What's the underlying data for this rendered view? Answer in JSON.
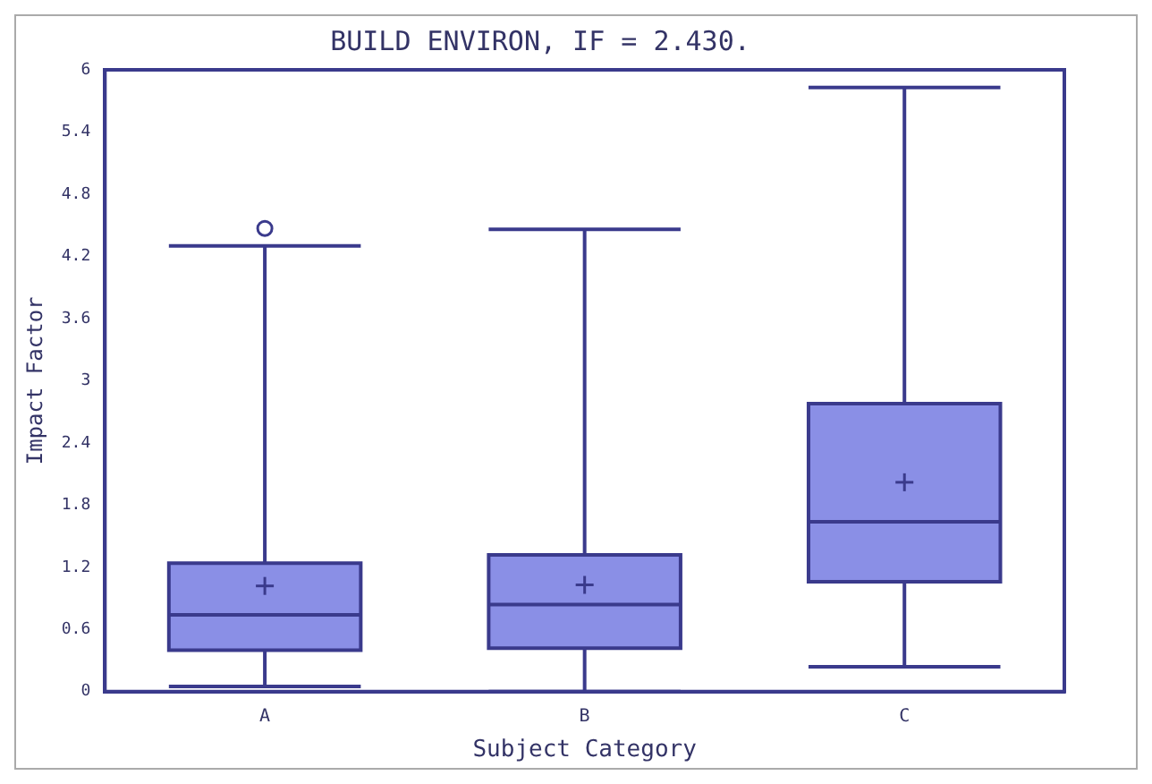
{
  "chart_data": {
    "type": "box",
    "title": "BUILD ENVIRON, IF = 2.430.",
    "xlabel": "Subject Category",
    "ylabel": "Impact Factor",
    "categories": [
      "A",
      "B",
      "C"
    ],
    "color": "#8a8fe6",
    "boxes": [
      {
        "low": 0.05,
        "q1": 0.4,
        "median": 0.74,
        "q3": 1.24,
        "high": 4.3,
        "mean": 1.02,
        "outliers": [
          4.47
        ]
      },
      {
        "low": 0,
        "q1": 0.42,
        "median": 0.84,
        "q3": 1.32,
        "high": 4.46,
        "mean": 1.03
      },
      {
        "low": 0.24,
        "q1": 1.06,
        "median": 1.64,
        "q3": 2.78,
        "high": 5.83,
        "mean": 2.02
      }
    ],
    "ylim": [
      0,
      6
    ],
    "yticks": [
      0,
      0.6,
      1.2,
      1.8,
      2.4,
      3,
      3.6,
      4.2,
      4.8,
      5.4,
      6
    ],
    "grid": false,
    "legend": false
  }
}
